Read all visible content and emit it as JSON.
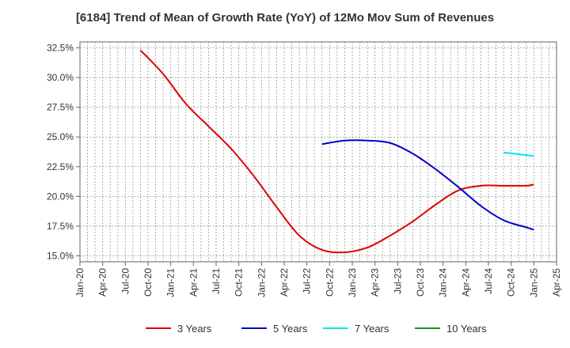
{
  "chart_data": {
    "type": "line",
    "title": "[6184]  Trend of Mean of Growth Rate (YoY) of 12Mo Mov Sum of Revenues",
    "xlabel": "",
    "ylabel": "",
    "x_ticks": [
      "Jan-20",
      "Apr-20",
      "Jul-20",
      "Oct-20",
      "Jan-21",
      "Apr-21",
      "Jul-21",
      "Oct-21",
      "Jan-22",
      "Apr-22",
      "Jul-22",
      "Oct-22",
      "Jan-23",
      "Apr-23",
      "Jul-23",
      "Oct-23",
      "Jan-24",
      "Apr-24",
      "Jul-24",
      "Oct-24",
      "Jan-25",
      "Apr-25"
    ],
    "y_ticks": [
      "15.0%",
      "17.5%",
      "20.0%",
      "22.5%",
      "25.0%",
      "27.5%",
      "30.0%",
      "32.5%"
    ],
    "ylim": [
      14.5,
      33.0
    ],
    "grid": true,
    "legend_position": "bottom",
    "series": [
      {
        "name": "3 Years",
        "color": "#dd0000",
        "x": [
          "Sep-20",
          "Dec-20",
          "Mar-21",
          "Jun-21",
          "Sep-21",
          "Dec-21",
          "Mar-22",
          "Jun-22",
          "Sep-22",
          "Dec-22",
          "Mar-23",
          "Jun-23",
          "Sep-23",
          "Dec-23",
          "Mar-24",
          "Jun-24",
          "Sep-24",
          "Dec-24",
          "Jan-25"
        ],
        "values": [
          32.3,
          30.3,
          27.8,
          25.9,
          24.0,
          21.7,
          19.1,
          16.7,
          15.5,
          15.3,
          15.7,
          16.7,
          17.9,
          19.3,
          20.5,
          20.9,
          20.9,
          20.9,
          21.0
        ]
      },
      {
        "name": "5 Years",
        "color": "#0000cc",
        "x": [
          "Sep-22",
          "Dec-22",
          "Mar-23",
          "Jun-23",
          "Sep-23",
          "Dec-23",
          "Mar-24",
          "Jun-24",
          "Sep-24",
          "Dec-24",
          "Jan-25"
        ],
        "values": [
          24.4,
          24.7,
          24.7,
          24.5,
          23.6,
          22.3,
          20.8,
          19.2,
          18.0,
          17.4,
          17.2
        ]
      },
      {
        "name": "7 Years",
        "color": "#00e5ee",
        "x": [
          "Sep-24",
          "Jan-25"
        ],
        "values": [
          23.7,
          23.4
        ]
      },
      {
        "name": "10 Years",
        "color": "#228b22",
        "x": [],
        "values": []
      }
    ]
  }
}
